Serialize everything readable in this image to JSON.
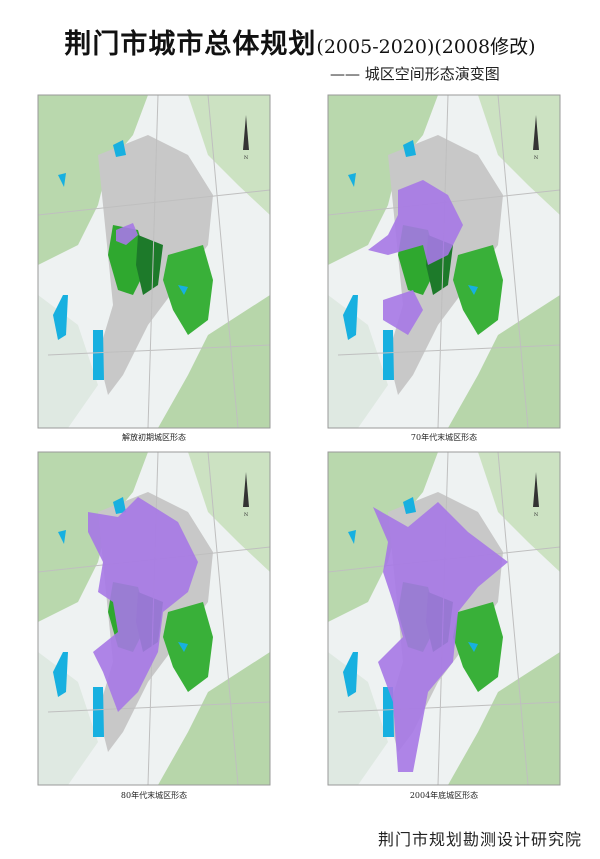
{
  "header": {
    "title": "荆门市城市总体规划",
    "period": "(2005-2020)(2008修改)",
    "subtitle": "—— 城区空间形态演变图"
  },
  "panels": [
    {
      "caption": "解放初期城区形态"
    },
    {
      "caption": "70年代末城区形态"
    },
    {
      "caption": "80年代末城区形态"
    },
    {
      "caption": "2004年底城区形态"
    }
  ],
  "footer": {
    "organization": "荆门市规划勘测设计研究院"
  }
}
